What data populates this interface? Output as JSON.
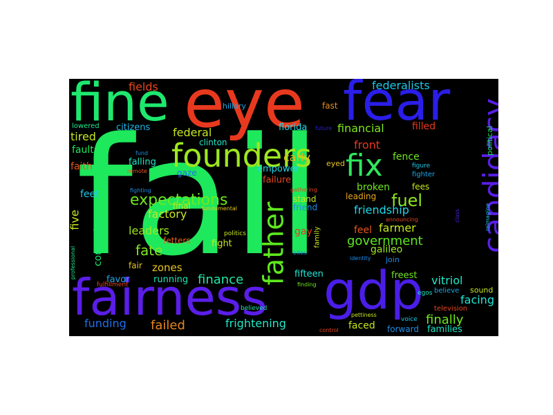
{
  "words": [
    {
      "text": "fail",
      "color": "#1ee85c"
    },
    {
      "text": "eye",
      "color": "#e8391e"
    },
    {
      "text": "fear",
      "color": "#2a1ee8"
    },
    {
      "text": "fine",
      "color": "#1ee86e"
    },
    {
      "text": "fairness",
      "color": "#5a1ee8"
    },
    {
      "text": "gdp",
      "color": "#4a1ee8"
    },
    {
      "text": "founders",
      "color": "#9de81e"
    },
    {
      "text": "candidacy",
      "color": "#5a1ee8"
    },
    {
      "text": "fix",
      "color": "#2ee85c"
    },
    {
      "text": "father",
      "color": "#5ee81e"
    },
    {
      "text": "expectations",
      "color": "#6ee81e"
    },
    {
      "text": "fuel",
      "color": "#8ee81e"
    },
    {
      "text": "government",
      "color": "#5ee81e"
    },
    {
      "text": "finance",
      "color": "#1ee8a8"
    },
    {
      "text": "fate",
      "color": "#7ee81e"
    },
    {
      "text": "federalists",
      "color": "#1ec8e8"
    },
    {
      "text": "fields",
      "color": "#e8461e"
    },
    {
      "text": "hillary",
      "color": "#1ea8e8"
    },
    {
      "text": "fast",
      "color": "#e88e1e"
    },
    {
      "text": "lowered",
      "color": "#1ee88e"
    },
    {
      "text": "citizens",
      "color": "#1eb8e8"
    },
    {
      "text": "federal",
      "color": "#c8e81e"
    },
    {
      "text": "clinton",
      "color": "#1ee8c8"
    },
    {
      "text": "carly",
      "color": "#e8b81e"
    },
    {
      "text": "financial",
      "color": "#7ee81e"
    },
    {
      "text": "filled",
      "color": "#e8391e"
    },
    {
      "text": "future",
      "color": "#2a1ee8"
    },
    {
      "text": "florida",
      "color": "#1ed8e8"
    },
    {
      "text": "tired",
      "color": "#c8e81e"
    },
    {
      "text": "fault",
      "color": "#1ee85c"
    },
    {
      "text": "front",
      "color": "#e8391e"
    },
    {
      "text": "political",
      "color": "#1ee86e"
    },
    {
      "text": "fence",
      "color": "#6ee81e"
    },
    {
      "text": "fund",
      "color": "#1e8ee8"
    },
    {
      "text": "falling",
      "color": "#1ee8c8"
    },
    {
      "text": "faith",
      "color": "#e8561e"
    },
    {
      "text": "gaze",
      "color": "#1e6ee8"
    },
    {
      "text": "empower",
      "color": "#1ed8e8"
    },
    {
      "text": "eyed",
      "color": "#e8c81e"
    },
    {
      "text": "figure",
      "color": "#1ec8e8"
    },
    {
      "text": "remote",
      "color": "#e8561e"
    },
    {
      "text": "failure",
      "color": "#e8461e"
    },
    {
      "text": "fighter",
      "color": "#1ea8e8"
    },
    {
      "text": "fighting",
      "color": "#1e8ee8"
    },
    {
      "text": "gathering",
      "color": "#e8461e"
    },
    {
      "text": "broken",
      "color": "#6ee81e"
    },
    {
      "text": "fees",
      "color": "#c8e81e"
    },
    {
      "text": "feet",
      "color": "#1ec8e8"
    },
    {
      "text": "final",
      "color": "#c8e81e"
    },
    {
      "text": "stand",
      "color": "#c8e81e"
    },
    {
      "text": "leading",
      "color": "#e8a81e"
    },
    {
      "text": "friend",
      "color": "#1e8ee8"
    },
    {
      "text": "friendship",
      "color": "#1ed8e8"
    },
    {
      "text": "five",
      "color": "#c8e81e"
    },
    {
      "text": "factory",
      "color": "#c8e81e"
    },
    {
      "text": "fundamental",
      "color": "#e8c81e"
    },
    {
      "text": "announcing",
      "color": "#e8461e"
    },
    {
      "text": "reimagine",
      "color": "#1ec8e8"
    },
    {
      "text": "class",
      "color": "#4a1ee8"
    },
    {
      "text": "corruption",
      "color": "#1ee86e"
    },
    {
      "text": "leaders",
      "color": "#9de81e"
    },
    {
      "text": "gay",
      "color": "#e8391e"
    },
    {
      "text": "politics",
      "color": "#c8e81e"
    },
    {
      "text": "family",
      "color": "#c8e81e"
    },
    {
      "text": "feel",
      "color": "#e8561e"
    },
    {
      "text": "farmer",
      "color": "#c8e81e"
    },
    {
      "text": "fetters",
      "color": "#e8661e"
    },
    {
      "text": "fight",
      "color": "#c8e81e"
    },
    {
      "text": "galileo",
      "color": "#9de81e"
    },
    {
      "text": "identity",
      "color": "#1e8ee8"
    },
    {
      "text": "zones",
      "color": "#e8c81e"
    },
    {
      "text": "fair",
      "color": "#e8c81e"
    },
    {
      "text": "bites",
      "color": "#1e8ee8"
    },
    {
      "text": "join",
      "color": "#1e8ee8"
    },
    {
      "text": "professional",
      "color": "#1ee88e"
    },
    {
      "text": "favor",
      "color": "#1ea8e8"
    },
    {
      "text": "running",
      "color": "#1ee8b8"
    },
    {
      "text": "fifteen",
      "color": "#1ee8d8"
    },
    {
      "text": "freest",
      "color": "#6ee81e"
    },
    {
      "text": "vitriol",
      "color": "#1ee8c8"
    },
    {
      "text": "fulfillment",
      "color": "#e8461e"
    },
    {
      "text": "finding",
      "color": "#6ee81e"
    },
    {
      "text": "egos",
      "color": "#1ee8c8"
    },
    {
      "text": "believed",
      "color": "#1ee8a8"
    },
    {
      "text": "believe",
      "color": "#1ea8e8"
    },
    {
      "text": "sound",
      "color": "#c8e81e"
    },
    {
      "text": "facing",
      "color": "#1ee8d8"
    },
    {
      "text": "television",
      "color": "#e8461e"
    },
    {
      "text": "finally",
      "color": "#6ee81e"
    },
    {
      "text": "pettiness",
      "color": "#c8e81e"
    },
    {
      "text": "voice",
      "color": "#1ec8e8"
    },
    {
      "text": "funding",
      "color": "#1e6ee8"
    },
    {
      "text": "failed",
      "color": "#e8861e"
    },
    {
      "text": "frightening",
      "color": "#1ee8c8"
    },
    {
      "text": "faced",
      "color": "#c8e81e"
    },
    {
      "text": "forward",
      "color": "#1e8ee8"
    },
    {
      "text": "families",
      "color": "#1ee8c8"
    },
    {
      "text": "control",
      "color": "#e8461e"
    }
  ]
}
